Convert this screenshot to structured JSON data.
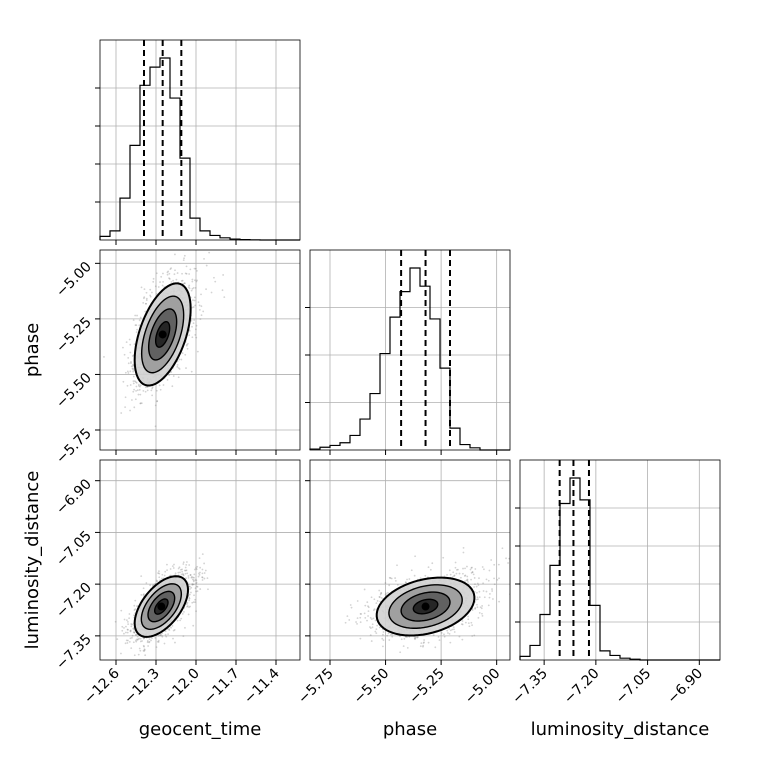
{
  "chart_data": {
    "type": "corner",
    "parameters": [
      {
        "name": "geocent_time",
        "label": "geocent_time",
        "range": [
          -12.72,
          -11.22
        ],
        "ticks": [
          -12.6,
          -12.3,
          -12.0,
          -11.7,
          -11.4
        ],
        "tick_labels": [
          "−12.6",
          "−12.3",
          "−12.0",
          "−11.7",
          "−11.4"
        ],
        "median": -12.25,
        "quantiles": [
          -12.39,
          -12.11
        ],
        "hist_bins": [
          -12.72,
          -12.645,
          -12.57,
          -12.495,
          -12.42,
          -12.345,
          -12.27,
          -12.195,
          -12.12,
          -12.045,
          -11.97,
          -11.895,
          -11.82,
          -11.745,
          -11.67,
          -11.595,
          -11.52,
          -11.445,
          -11.37,
          -11.295,
          -11.22
        ],
        "hist_counts": [
          0.02,
          0.05,
          0.23,
          0.52,
          0.85,
          0.95,
          1.0,
          0.78,
          0.45,
          0.12,
          0.05,
          0.025,
          0.012,
          0.005,
          0.002,
          0.001,
          0,
          0,
          0,
          0
        ],
        "yticks_fraction": [
          0.2,
          0.4,
          0.6,
          0.8
        ]
      },
      {
        "name": "phase",
        "label": "phase",
        "range": [
          -5.84,
          -4.94
        ],
        "ticks": [
          -5.75,
          -5.5,
          -5.25,
          -5.0
        ],
        "tick_labels": [
          "−5.75",
          "−5.50",
          "−5.25",
          "−5.00"
        ],
        "median": -5.32,
        "quantiles": [
          -5.43,
          -5.21
        ],
        "hist_bins": [
          -5.84,
          -5.795,
          -5.75,
          -5.705,
          -5.66,
          -5.615,
          -5.57,
          -5.525,
          -5.48,
          -5.435,
          -5.39,
          -5.345,
          -5.3,
          -5.255,
          -5.21,
          -5.165,
          -5.12,
          -5.075,
          -5.03,
          -4.985,
          -4.94
        ],
        "hist_counts": [
          0.005,
          0.015,
          0.025,
          0.04,
          0.08,
          0.17,
          0.31,
          0.53,
          0.73,
          0.87,
          1.0,
          0.9,
          0.72,
          0.45,
          0.12,
          0.03,
          0.012,
          0,
          0,
          0
        ],
        "yticks_fraction": [
          0.25,
          0.5,
          0.75
        ]
      },
      {
        "name": "luminosity_distance",
        "label": "luminosity_distance",
        "range": [
          -7.42,
          -6.84
        ],
        "ticks": [
          -7.35,
          -7.2,
          -7.05,
          -6.9
        ],
        "tick_labels": [
          "−7.35",
          "−7.20",
          "−7.05",
          "−6.90"
        ],
        "median": -7.265,
        "quantiles": [
          -7.305,
          -7.22
        ],
        "hist_bins": [
          -7.42,
          -7.391,
          -7.362,
          -7.333,
          -7.304,
          -7.275,
          -7.246,
          -7.217,
          -7.188,
          -7.159,
          -7.13,
          -7.101,
          -7.072,
          -7.043,
          -7.014,
          -6.985,
          -6.956,
          -6.927,
          -6.898,
          -6.869,
          -6.84
        ],
        "hist_counts": [
          0.02,
          0.08,
          0.25,
          0.52,
          0.86,
          1.0,
          0.88,
          0.3,
          0.05,
          0.025,
          0.01,
          0.004,
          0,
          0,
          0,
          0,
          0,
          0,
          0,
          0
        ],
        "yticks_fraction": [
          0.2,
          0.4,
          0.6,
          0.8
        ]
      }
    ],
    "pairs": [
      {
        "x": "geocent_time",
        "y": "phase",
        "peak": [
          -12.25,
          -5.32
        ],
        "sigma": [
          0.105,
          0.115
        ],
        "correlation": 0.5,
        "contour_levels_sigma": [
          0.5,
          1.0,
          1.5,
          2.0
        ]
      },
      {
        "x": "geocent_time",
        "y": "luminosity_distance",
        "peak": [
          -12.26,
          -7.265
        ],
        "sigma": [
          0.1,
          0.044
        ],
        "correlation": 0.55,
        "contour_levels_sigma": [
          0.5,
          1.0,
          1.5,
          2.0
        ]
      },
      {
        "x": "phase",
        "y": "luminosity_distance",
        "peak": [
          -5.32,
          -7.265
        ],
        "sigma": [
          0.11,
          0.042
        ],
        "correlation": 0.3,
        "contour_levels_sigma": [
          0.5,
          1.0,
          1.5,
          2.0
        ]
      }
    ],
    "grid": true,
    "colors": {
      "line": "#000000",
      "grid": "#b0b0b0",
      "scatter": "#808080"
    }
  }
}
